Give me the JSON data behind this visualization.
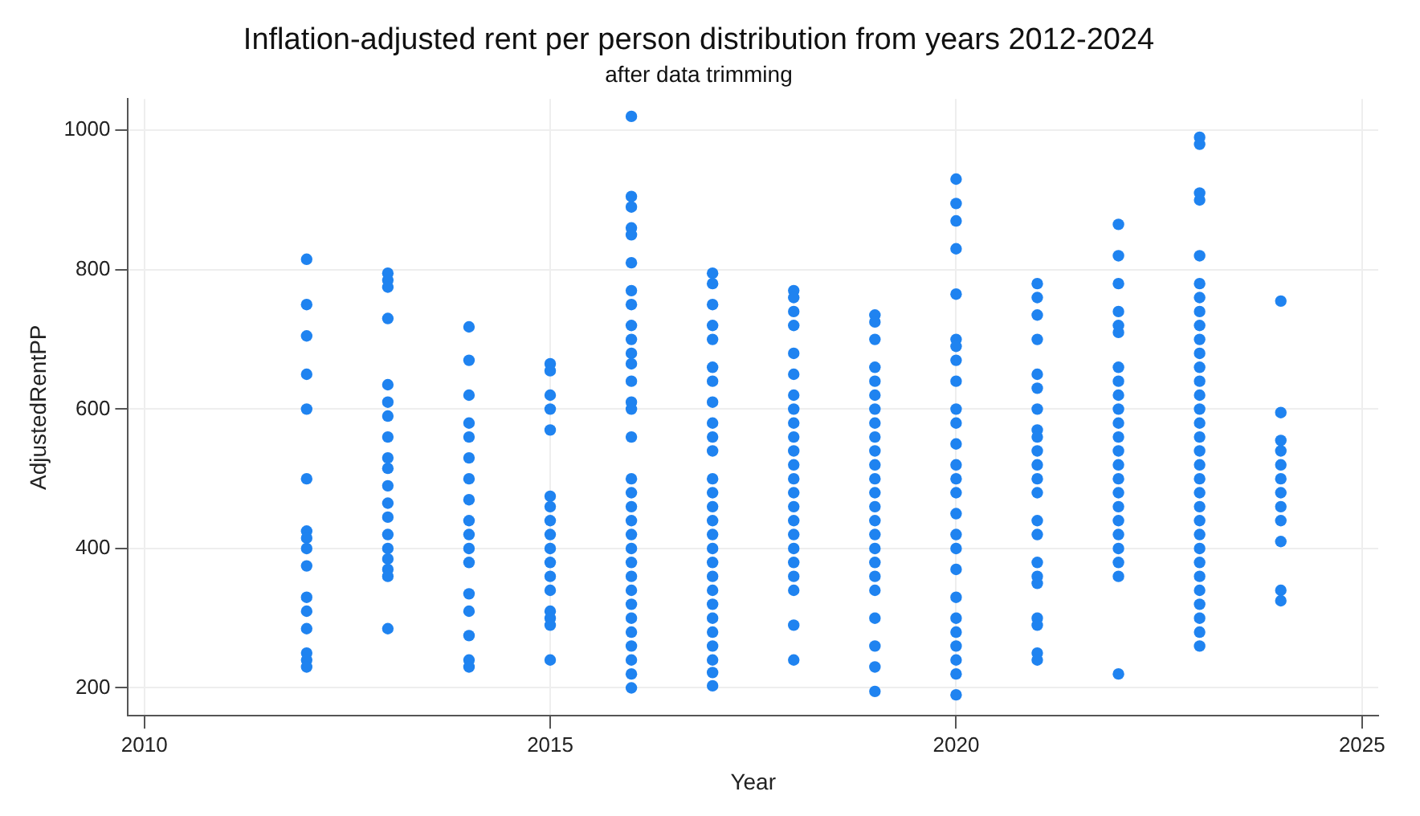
{
  "chart_data": {
    "type": "scatter",
    "title": "Inflation-adjusted rent per person distribution from years 2012-2024",
    "subtitle": "after data trimming",
    "xlabel": "Year",
    "ylabel": "AdjustedRentPP",
    "xlim": [
      2009.8,
      2025.2
    ],
    "xticks": [
      2010,
      2015,
      2020,
      2025
    ],
    "ylim": [
      160,
      1045
    ],
    "yticks": [
      200,
      400,
      600,
      800,
      1000
    ],
    "grid": true,
    "marker": "circle",
    "legend": false,
    "series": [
      {
        "color": "#1f83f0",
        "x": [
          2012,
          2012,
          2012,
          2012,
          2012,
          2012,
          2012,
          2012,
          2012,
          2012,
          2012,
          2012,
          2012,
          2012,
          2012,
          2012
        ],
        "values": [
          815,
          750,
          705,
          650,
          600,
          500,
          425,
          415,
          400,
          375,
          330,
          310,
          285,
          250,
          240,
          230
        ]
      },
      {
        "color": "#1f83f0",
        "x": [
          2013,
          2013,
          2013,
          2013,
          2013,
          2013,
          2013,
          2013,
          2013,
          2013,
          2013,
          2013,
          2013,
          2013,
          2013,
          2013,
          2013,
          2013,
          2013
        ],
        "values": [
          795,
          785,
          775,
          730,
          635,
          610,
          590,
          560,
          530,
          515,
          490,
          465,
          445,
          420,
          400,
          385,
          370,
          360,
          285
        ]
      },
      {
        "color": "#1f83f0",
        "x": [
          2014,
          2014,
          2014,
          2014,
          2014,
          2014,
          2014,
          2014,
          2014,
          2014,
          2014,
          2014,
          2014,
          2014,
          2014,
          2014,
          2014
        ],
        "values": [
          718,
          670,
          620,
          580,
          560,
          530,
          500,
          470,
          440,
          420,
          400,
          380,
          335,
          310,
          275,
          240,
          230
        ]
      },
      {
        "color": "#1f83f0",
        "x": [
          2015,
          2015,
          2015,
          2015,
          2015,
          2015,
          2015,
          2015,
          2015,
          2015,
          2015,
          2015,
          2015,
          2015,
          2015,
          2015,
          2015
        ],
        "values": [
          665,
          655,
          620,
          600,
          570,
          475,
          460,
          440,
          420,
          400,
          380,
          360,
          340,
          310,
          300,
          290,
          240
        ]
      },
      {
        "color": "#1f83f0",
        "x": [
          2016,
          2016,
          2016,
          2016,
          2016,
          2016,
          2016,
          2016,
          2016,
          2016,
          2016,
          2016,
          2016,
          2016,
          2016,
          2016,
          2016,
          2016,
          2016,
          2016,
          2016,
          2016,
          2016,
          2016,
          2016,
          2016,
          2016,
          2016,
          2016,
          2016,
          2016,
          2016
        ],
        "values": [
          1020,
          905,
          890,
          860,
          850,
          810,
          770,
          750,
          720,
          700,
          680,
          665,
          640,
          610,
          600,
          560,
          500,
          480,
          460,
          440,
          420,
          400,
          380,
          360,
          340,
          320,
          300,
          280,
          260,
          240,
          220,
          200
        ]
      },
      {
        "color": "#1f83f0",
        "x": [
          2017,
          2017,
          2017,
          2017,
          2017,
          2017,
          2017,
          2017,
          2017,
          2017,
          2017,
          2017,
          2017,
          2017,
          2017,
          2017,
          2017,
          2017,
          2017,
          2017,
          2017,
          2017,
          2017,
          2017,
          2017,
          2017,
          2017
        ],
        "values": [
          795,
          780,
          750,
          720,
          700,
          660,
          640,
          610,
          580,
          560,
          540,
          500,
          480,
          460,
          440,
          420,
          400,
          380,
          360,
          340,
          320,
          300,
          280,
          260,
          240,
          222,
          203
        ]
      },
      {
        "color": "#1f83f0",
        "x": [
          2018,
          2018,
          2018,
          2018,
          2018,
          2018,
          2018,
          2018,
          2018,
          2018,
          2018,
          2018,
          2018,
          2018,
          2018,
          2018,
          2018,
          2018,
          2018,
          2018,
          2018,
          2018,
          2018
        ],
        "values": [
          770,
          760,
          740,
          720,
          680,
          650,
          620,
          600,
          580,
          560,
          540,
          520,
          500,
          480,
          460,
          440,
          420,
          400,
          380,
          360,
          340,
          290,
          240
        ]
      },
      {
        "color": "#1f83f0",
        "x": [
          2019,
          2019,
          2019,
          2019,
          2019,
          2019,
          2019,
          2019,
          2019,
          2019,
          2019,
          2019,
          2019,
          2019,
          2019,
          2019,
          2019,
          2019,
          2019,
          2019,
          2019,
          2019,
          2019,
          2019
        ],
        "values": [
          735,
          725,
          700,
          660,
          640,
          620,
          600,
          580,
          560,
          540,
          520,
          500,
          480,
          460,
          440,
          420,
          400,
          380,
          360,
          340,
          300,
          260,
          230,
          195
        ]
      },
      {
        "color": "#1f83f0",
        "x": [
          2020,
          2020,
          2020,
          2020,
          2020,
          2020,
          2020,
          2020,
          2020,
          2020,
          2020,
          2020,
          2020,
          2020,
          2020,
          2020,
          2020,
          2020,
          2020,
          2020,
          2020,
          2020,
          2020,
          2020,
          2020,
          2020
        ],
        "values": [
          930,
          895,
          870,
          830,
          765,
          700,
          690,
          670,
          640,
          600,
          580,
          550,
          520,
          500,
          480,
          450,
          420,
          400,
          370,
          330,
          300,
          280,
          260,
          240,
          220,
          190
        ]
      },
      {
        "color": "#1f83f0",
        "x": [
          2021,
          2021,
          2021,
          2021,
          2021,
          2021,
          2021,
          2021,
          2021,
          2021,
          2021,
          2021,
          2021,
          2021,
          2021,
          2021,
          2021,
          2021,
          2021,
          2021,
          2021,
          2021
        ],
        "values": [
          780,
          760,
          735,
          700,
          650,
          630,
          600,
          570,
          560,
          540,
          520,
          500,
          480,
          440,
          420,
          380,
          360,
          350,
          300,
          290,
          250,
          240
        ]
      },
      {
        "color": "#1f83f0",
        "x": [
          2022,
          2022,
          2022,
          2022,
          2022,
          2022,
          2022,
          2022,
          2022,
          2022,
          2022,
          2022,
          2022,
          2022,
          2022,
          2022,
          2022,
          2022,
          2022,
          2022,
          2022,
          2022,
          2022
        ],
        "values": [
          865,
          820,
          780,
          740,
          720,
          710,
          660,
          640,
          620,
          600,
          580,
          560,
          540,
          520,
          500,
          480,
          460,
          440,
          420,
          400,
          380,
          360,
          220
        ]
      },
      {
        "color": "#1f83f0",
        "x": [
          2023,
          2023,
          2023,
          2023,
          2023,
          2023,
          2023,
          2023,
          2023,
          2023,
          2023,
          2023,
          2023,
          2023,
          2023,
          2023,
          2023,
          2023,
          2023,
          2023,
          2023,
          2023,
          2023,
          2023,
          2023,
          2023,
          2023,
          2023,
          2023,
          2023,
          2023,
          2023
        ],
        "values": [
          990,
          980,
          910,
          900,
          820,
          780,
          760,
          740,
          720,
          700,
          680,
          660,
          640,
          620,
          600,
          580,
          560,
          540,
          520,
          500,
          480,
          460,
          440,
          420,
          400,
          380,
          360,
          340,
          320,
          300,
          280,
          260
        ]
      },
      {
        "color": "#1f83f0",
        "x": [
          2024,
          2024,
          2024,
          2024,
          2024,
          2024,
          2024,
          2024,
          2024,
          2024,
          2024,
          2024
        ],
        "values": [
          755,
          595,
          555,
          540,
          520,
          500,
          480,
          460,
          440,
          410,
          340,
          325
        ]
      }
    ]
  }
}
